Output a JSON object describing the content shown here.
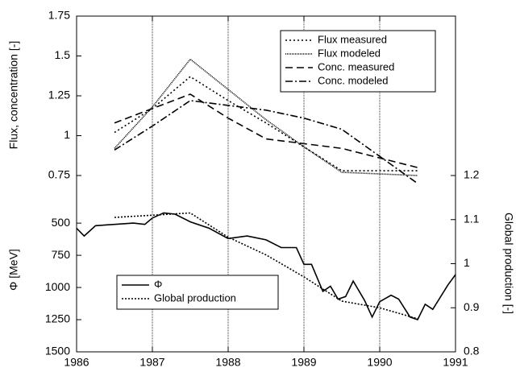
{
  "chart_data": [
    {
      "type": "line",
      "ylabel": "Flux, concentration [-]",
      "x": [
        1986.5,
        1987,
        1987.5,
        1988,
        1988.5,
        1989,
        1989.5,
        1990,
        1990.5
      ],
      "series": [
        {
          "name": "Flux measured",
          "color": "#000",
          "dash": "2,3",
          "values": [
            1.02,
            1.17,
            1.37,
            1.22,
            1.08,
            0.93,
            0.78,
            0.78,
            0.78
          ]
        },
        {
          "name": "Flux modeled",
          "color": "#000",
          "dash": "1,1",
          "values": [
            0.92,
            1.18,
            1.48,
            1.29,
            1.1,
            0.93,
            0.77,
            0.76,
            0.75
          ]
        },
        {
          "name": "Conc. measured",
          "color": "#000",
          "dash": "9,5",
          "values": [
            1.08,
            1.17,
            1.26,
            1.11,
            0.98,
            0.95,
            0.92,
            0.86,
            0.8
          ]
        },
        {
          "name": "Conc. modeled",
          "color": "#000",
          "dash": "9,3,2,3",
          "values": [
            0.91,
            1.06,
            1.22,
            1.19,
            1.16,
            1.11,
            1.04,
            0.87,
            0.7
          ]
        }
      ],
      "ylim": [
        0.75,
        1.75
      ],
      "yticks": [
        0.75,
        1,
        1.25,
        1.5,
        1.75
      ],
      "legend": "upper right"
    },
    {
      "type": "line",
      "ylabel": "Φ [MeV]",
      "y2label": "Global production [-]",
      "x": [
        1986,
        1986.1,
        1986.25,
        1986.5,
        1986.75,
        1986.9,
        1987,
        1987.15,
        1987.3,
        1987.5,
        1987.75,
        1988,
        1988.25,
        1988.5,
        1988.7,
        1988.9,
        1989,
        1989.1,
        1989.25,
        1989.35,
        1989.45,
        1989.55,
        1989.65,
        1989.8,
        1989.9,
        1990,
        1990.15,
        1990.25,
        1990.4,
        1990.5,
        1990.6,
        1990.7,
        1990.9,
        1991
      ],
      "series": [
        {
          "name": "Φ",
          "color": "#000",
          "dash": "none",
          "values": [
            540,
            600,
            520,
            510,
            500,
            510,
            460,
            420,
            430,
            490,
            540,
            620,
            600,
            630,
            690,
            690,
            820,
            820,
            1030,
            990,
            1090,
            1070,
            950,
            1100,
            1230,
            1110,
            1060,
            1090,
            1230,
            1250,
            1130,
            1170,
            980,
            900
          ]
        },
        {
          "name": "Global production",
          "color": "#000",
          "dash": "2,2",
          "axis": "y2",
          "x": [
            1986.5,
            1987,
            1987.5,
            1988,
            1988.5,
            1989,
            1989.5,
            1990,
            1990.5
          ],
          "values": [
            1.105,
            1.11,
            1.115,
            1.06,
            1.02,
            0.97,
            0.915,
            0.9,
            0.875
          ]
        }
      ],
      "ylim": [
        1500,
        130
      ],
      "yticks": [
        500,
        750,
        1000,
        1250,
        1500
      ],
      "y2lim": [
        0.8,
        1.2
      ],
      "y2ticks": [
        0.8,
        0.9,
        1,
        1.1,
        1.2
      ],
      "xlim": [
        1986,
        1991
      ],
      "xticks": [
        1986,
        1987,
        1988,
        1989,
        1990,
        1991
      ],
      "xgrid": true,
      "legend": "lower left"
    }
  ]
}
